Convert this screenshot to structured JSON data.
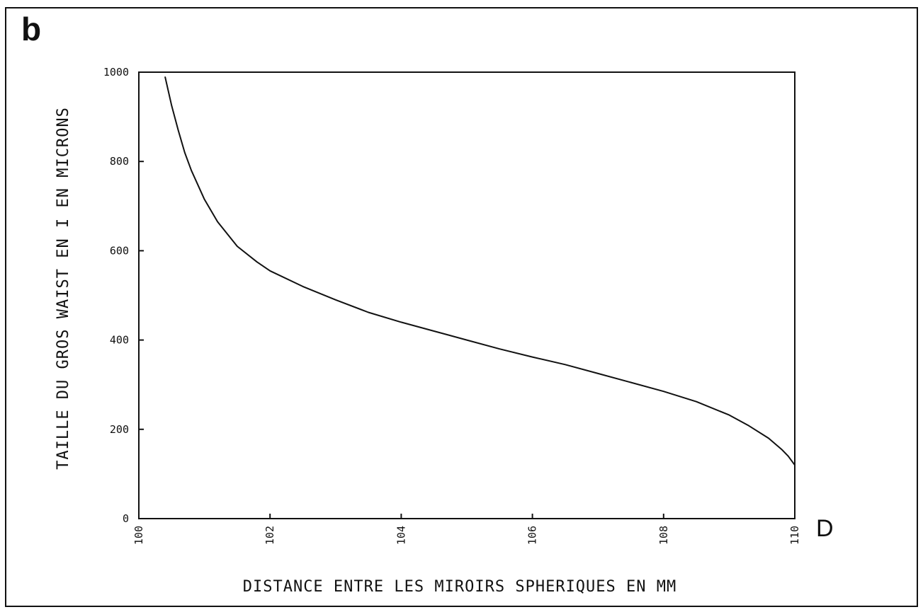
{
  "panel_label": "b",
  "end_marker": "D",
  "chart_data": {
    "type": "line",
    "title": "",
    "xlabel": "DISTANCE ENTRE LES MIROIRS SPHERIQUES EN MM",
    "ylabel": "TAILLE DU GROS WAIST EN I EN MICRONS",
    "xlim": [
      100,
      110
    ],
    "ylim": [
      0,
      1000
    ],
    "x_ticks": [
      100,
      102,
      104,
      106,
      108,
      110
    ],
    "x_tick_labels": [
      "100",
      "102",
      "104",
      "106",
      "108",
      "110"
    ],
    "y_ticks": [
      0,
      200,
      400,
      600,
      800,
      1000
    ],
    "y_tick_labels": [
      "0",
      "200",
      "400",
      "600",
      "800",
      "1000"
    ],
    "grid": false,
    "series": [
      {
        "x": [
          100.4,
          100.5,
          100.6,
          100.7,
          100.8,
          101.0,
          101.2,
          101.5,
          101.8,
          102.0,
          102.5,
          103.0,
          103.5,
          104.0,
          104.5,
          105.0,
          105.5,
          106.0,
          106.5,
          107.0,
          107.5,
          108.0,
          108.5,
          109.0,
          109.3,
          109.6,
          109.8,
          109.9,
          110.0
        ],
        "y": [
          990,
          925,
          870,
          820,
          780,
          715,
          665,
          610,
          575,
          555,
          520,
          490,
          462,
          440,
          420,
          400,
          380,
          362,
          345,
          325,
          305,
          285,
          262,
          232,
          208,
          180,
          155,
          140,
          120
        ]
      }
    ]
  }
}
